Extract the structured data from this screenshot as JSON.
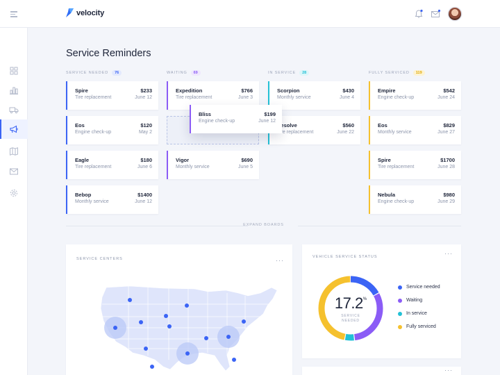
{
  "app": {
    "name": "velocity"
  },
  "page": {
    "title": "Service Reminders"
  },
  "sidebar": {
    "items": [
      {
        "icon": "grid-icon",
        "name": "dashboard",
        "active": false
      },
      {
        "icon": "bar-chart-icon",
        "name": "analytics",
        "active": false
      },
      {
        "icon": "truck-icon",
        "name": "fleet",
        "active": false
      },
      {
        "icon": "megaphone-icon",
        "name": "reminders",
        "active": true
      },
      {
        "icon": "map-icon",
        "name": "map",
        "active": false
      },
      {
        "icon": "mail-icon",
        "name": "messages",
        "active": false
      },
      {
        "icon": "gear-icon",
        "name": "settings",
        "active": false
      }
    ]
  },
  "columns": [
    {
      "label": "SERVICE NEEDED",
      "count": "76",
      "color": "#3b64f5",
      "badge_bg": "#e3e9fd",
      "cards": [
        {
          "name": "Spire",
          "service": "Tire replacement",
          "price": "$233",
          "date": "June 12"
        },
        {
          "name": "Eos",
          "service": "Engine check-up",
          "price": "$120",
          "date": "May 2"
        },
        {
          "name": "Eagle",
          "service": "Tire replacement",
          "price": "$180",
          "date": "June 6"
        },
        {
          "name": "Bebop",
          "service": "Monthly service",
          "price": "$1400",
          "date": "June 12"
        }
      ]
    },
    {
      "label": "WAITING",
      "count": "69",
      "color": "#8b5cf6",
      "badge_bg": "#efe7fd",
      "cards": [
        {
          "name": "Expedition",
          "service": "Tire replacement",
          "price": "$766",
          "date": "June 3"
        },
        {
          "placeholder": true
        },
        {
          "name": "Vigor",
          "service": "Monthly service",
          "price": "$690",
          "date": "June 5"
        }
      ]
    },
    {
      "label": "IN SERVICE",
      "count": "28",
      "color": "#22c1d6",
      "badge_bg": "#ddf6f9",
      "cards": [
        {
          "name": "Scorpion",
          "service": "Monthly service",
          "price": "$430",
          "date": "June 4"
        },
        {
          "name": "Resolve",
          "service": "Tire replacement",
          "price": "$560",
          "date": "June 22"
        }
      ]
    },
    {
      "label": "FULLY SERVICED",
      "count": "119",
      "color": "#f5c12e",
      "badge_bg": "#fdf3d3",
      "cards": [
        {
          "name": "Empire",
          "service": "Engine check-up",
          "price": "$542",
          "date": "June 24"
        },
        {
          "name": "Eos",
          "service": "Monthly service",
          "price": "$829",
          "date": "June 27"
        },
        {
          "name": "Spire",
          "service": "Tire replacement",
          "price": "$1700",
          "date": "June 28"
        },
        {
          "name": "Nebula",
          "service": "Engine check-up",
          "price": "$980",
          "date": "June 29"
        }
      ]
    }
  ],
  "dragging_card": {
    "name": "Bliss",
    "service": "Engine check-up",
    "price": "$199",
    "date": "June 12"
  },
  "expand": {
    "label": "EXPAND BOARDS"
  },
  "service_centers": {
    "title": "SERVICE CENTERS",
    "more": "···"
  },
  "vehicle_status": {
    "title": "VEHICLE SERVICE STATUS",
    "more": "···",
    "value": "17.2",
    "unit": "%",
    "caption_line1": "SERVICE",
    "caption_line2": "NEEDED",
    "segments": [
      {
        "label": "Service needed",
        "share": 17.2,
        "color": "#3b64f5"
      },
      {
        "label": "Waiting",
        "share": 31,
        "color": "#8b5cf6"
      },
      {
        "label": "In service",
        "share": 5,
        "color": "#22c1d6"
      },
      {
        "label": "Fully serviced",
        "share": 46.8,
        "color": "#f5c12e"
      }
    ]
  },
  "extra_panel": {
    "more": "···"
  }
}
